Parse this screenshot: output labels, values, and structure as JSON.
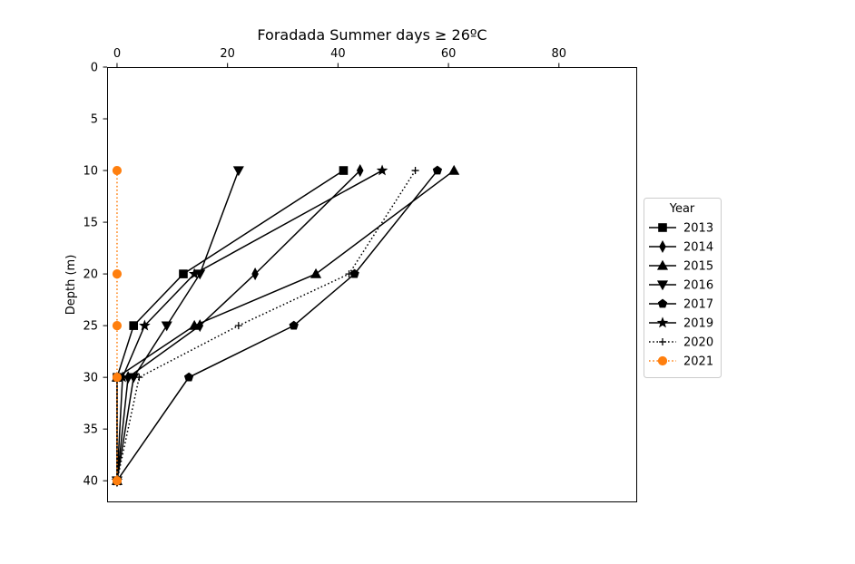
{
  "chart_data": {
    "type": "line",
    "title": "Foradada Summer days ≥ 26ºC",
    "xlabel": "",
    "ylabel": "Depth (m)",
    "xlim": [
      -1.8,
      94
    ],
    "ylim": [
      42,
      0
    ],
    "x_axis_position": "top",
    "y_inverted": true,
    "xticks": [
      "0",
      "20",
      "40",
      "60",
      "80"
    ],
    "yticks": [
      "0",
      "5",
      "10",
      "15",
      "20",
      "25",
      "30",
      "35",
      "40"
    ],
    "grid": false,
    "legend": {
      "title": "Year",
      "position": "right"
    },
    "depths": [
      10,
      20,
      25,
      30,
      40
    ],
    "series": [
      {
        "name": "2013",
        "marker": "square",
        "linestyle": "solid",
        "color": "#000000",
        "x": [
          41,
          12,
          3,
          0,
          0
        ]
      },
      {
        "name": "2014",
        "marker": "diamond",
        "linestyle": "solid",
        "color": "#000000",
        "x": [
          44,
          25,
          15,
          2,
          0
        ]
      },
      {
        "name": "2015",
        "marker": "triangle-up",
        "linestyle": "solid",
        "color": "#000000",
        "x": [
          61,
          36,
          14,
          0,
          0
        ]
      },
      {
        "name": "2016",
        "marker": "triangle-down",
        "linestyle": "solid",
        "color": "#000000",
        "x": [
          22,
          15,
          9,
          3,
          0
        ]
      },
      {
        "name": "2017",
        "marker": "pentagon",
        "linestyle": "solid",
        "color": "#000000",
        "x": [
          58,
          43,
          32,
          13,
          0
        ]
      },
      {
        "name": "2019",
        "marker": "star",
        "linestyle": "solid",
        "color": "#000000",
        "x": [
          48,
          14,
          5,
          1,
          0
        ]
      },
      {
        "name": "2020",
        "marker": "plus",
        "linestyle": "dotted",
        "color": "#000000",
        "x": [
          54,
          42,
          22,
          4,
          0
        ]
      },
      {
        "name": "2021",
        "marker": "circle",
        "linestyle": "dotted",
        "color": "#ff7f0e",
        "x": [
          0,
          0,
          0,
          0,
          0
        ]
      }
    ]
  }
}
